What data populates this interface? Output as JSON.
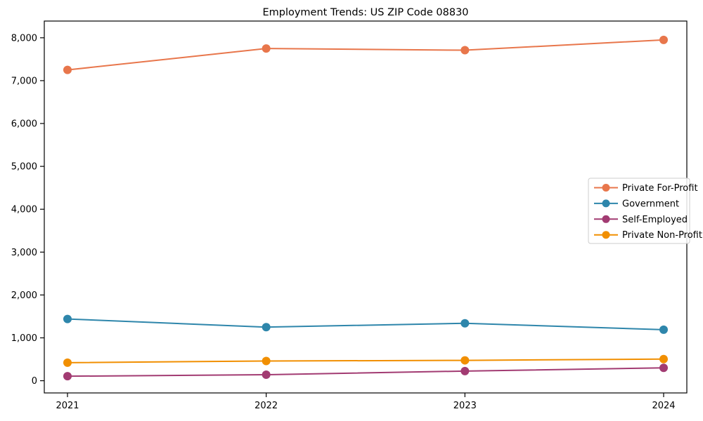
{
  "chart_data": {
    "type": "line",
    "title": "Employment Trends: US ZIP Code 08830",
    "categories": [
      "2021",
      "2022",
      "2023",
      "2024"
    ],
    "series": [
      {
        "name": "Private For-Profit",
        "color": "#E8764B",
        "values": [
          7250,
          7750,
          7710,
          7950
        ]
      },
      {
        "name": "Government",
        "color": "#2E86AB",
        "values": [
          1440,
          1250,
          1340,
          1190
        ]
      },
      {
        "name": "Self-Employed",
        "color": "#A23B72",
        "values": [
          105,
          140,
          225,
          300
        ]
      },
      {
        "name": "Private Non-Profit",
        "color": "#F18F01",
        "values": [
          420,
          460,
          475,
          505
        ]
      }
    ],
    "xlabel": "",
    "ylabel": "",
    "ylim": [
      -285,
      8390
    ],
    "yticks": [
      0,
      1000,
      2000,
      3000,
      4000,
      5000,
      6000,
      7000,
      8000
    ],
    "ytick_labels": [
      "0",
      "1,000",
      "2,000",
      "3,000",
      "4,000",
      "5,000",
      "6,000",
      "7,000",
      "8,000"
    ],
    "grid": false,
    "marker": "circle",
    "line_width": 2,
    "marker_radius": 6,
    "background_color": "#ffffff",
    "axis_color": "#000000",
    "legend": {
      "position": "center-right-inside",
      "border_color": "#cccccc",
      "background_color": "#ffffff",
      "entries": [
        "Private For-Profit",
        "Government",
        "Self-Employed",
        "Private Non-Profit"
      ]
    }
  }
}
